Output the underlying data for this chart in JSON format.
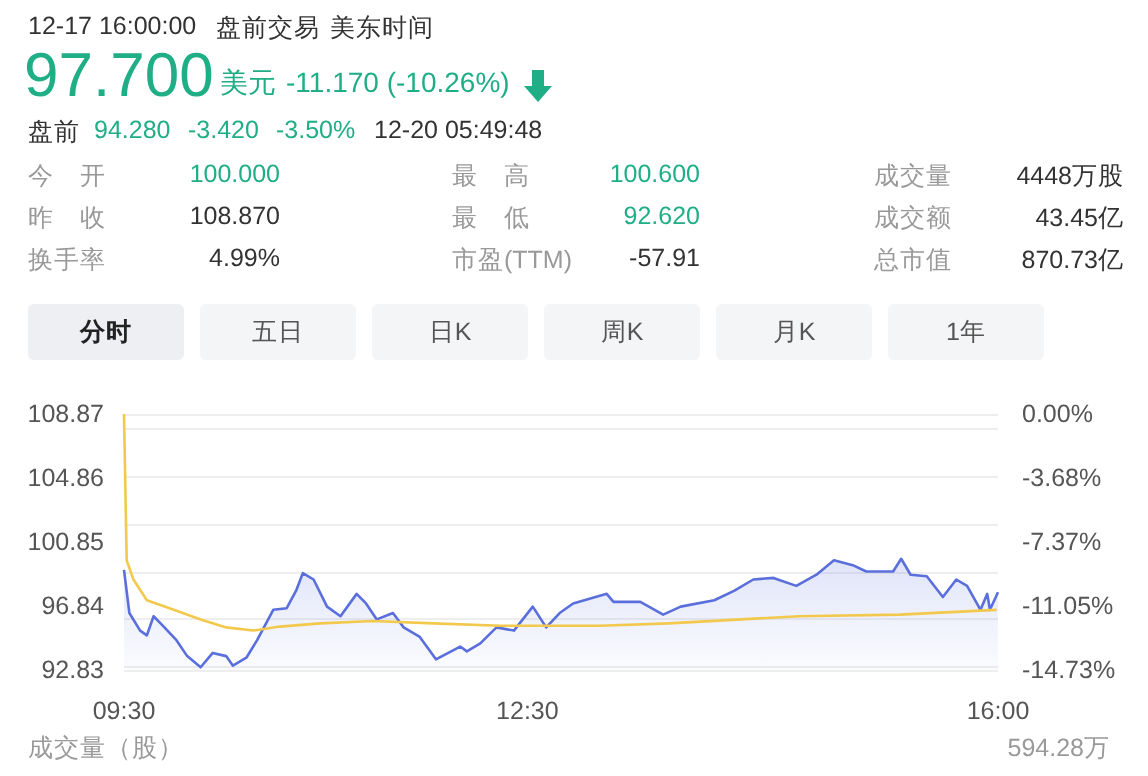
{
  "chart_data": {
    "type": "line",
    "annotations": [
      "12-17 16:00:00",
      "盘前交易",
      "美东时间",
      "97.700",
      "美元",
      "-11.170 (-10.26%)",
      "盘前",
      "94.280",
      "-3.420",
      "-3.50%",
      "12-20 05:49:48",
      "今　开",
      "100.000",
      "最　高",
      "100.600",
      "成交量",
      "4448万股",
      "昨　收",
      "108.870",
      "最　低",
      "92.620",
      "成交额",
      "43.45亿",
      "换手率",
      "4.99%",
      "市盈(TTM)",
      "-57.91",
      "总市值",
      "870.73亿",
      "分时",
      "五日",
      "日K",
      "周K",
      "月K",
      "1年",
      "成交量（股）",
      "594.28万"
    ],
    "series": [
      {
        "type": "area",
        "color": "#5a6fdc",
        "x": [
          9.5,
          9.54,
          9.62,
          9.67,
          9.72,
          9.79,
          9.89,
          9.97,
          10.07,
          10.16,
          10.26,
          10.31,
          10.41,
          10.49,
          10.61,
          10.71,
          10.78,
          10.83,
          10.91,
          11.01,
          11.11,
          11.23,
          11.3,
          11.38,
          11.5,
          11.58,
          11.7,
          11.82,
          12.0,
          12.05,
          12.15,
          12.27,
          12.4,
          12.54,
          12.64,
          12.74,
          12.84,
          13.09,
          13.14,
          13.34,
          13.51,
          13.64,
          13.89,
          14.04,
          14.18,
          14.33,
          14.5,
          14.65,
          14.78,
          14.92,
          15.02,
          15.22,
          15.28,
          15.35,
          15.47,
          15.59,
          15.69,
          15.77,
          15.87,
          15.92,
          15.94,
          16.0
        ],
        "values": [
          99.1,
          96.4,
          95.3,
          95.0,
          96.2,
          95.6,
          94.7,
          93.7,
          93.0,
          93.9,
          93.7,
          93.1,
          93.6,
          94.7,
          96.6,
          96.7,
          97.8,
          98.9,
          98.5,
          96.8,
          96.2,
          97.6,
          97.0,
          96.0,
          96.4,
          95.5,
          94.9,
          93.5,
          94.3,
          94.0,
          94.5,
          95.5,
          95.3,
          96.8,
          95.5,
          96.4,
          97.0,
          97.6,
          97.1,
          97.1,
          96.3,
          96.8,
          97.2,
          97.8,
          98.5,
          98.6,
          98.1,
          98.8,
          99.7,
          99.4,
          99.0,
          99.0,
          99.8,
          98.8,
          98.7,
          97.4,
          98.5,
          98.1,
          96.6,
          97.6,
          96.6,
          97.7
        ]
      },
      {
        "color": "#f2c94c",
        "x": [
          9.5,
          9.52,
          9.57,
          9.67,
          9.87,
          10.07,
          10.26,
          10.46,
          10.66,
          10.96,
          11.35,
          11.8,
          12.3,
          13.04,
          13.55,
          14.52,
          15.27,
          15.99
        ],
        "values": [
          108.87,
          99.7,
          98.5,
          97.2,
          96.6,
          96.0,
          95.5,
          95.3,
          95.55,
          95.75,
          95.9,
          95.75,
          95.6,
          95.6,
          95.75,
          96.2,
          96.3,
          96.6
        ]
      }
    ],
    "xlim": [
      9.5,
      16
    ],
    "xticks": [
      {
        "value": 9.5,
        "label": "09:30"
      },
      {
        "value": 12.5,
        "label": "12:30"
      },
      {
        "value": 16,
        "label": "16:00"
      }
    ],
    "ylim": [
      92.83,
      108.87
    ],
    "yticks": [
      92.83,
      96.84,
      100.85,
      104.86,
      108.87
    ],
    "y2lim": [
      -14.73,
      0
    ],
    "y2ticks": [
      {
        "value": -14.73,
        "label": "-14.73%"
      },
      {
        "value": -11.05,
        "label": "-11.05%"
      },
      {
        "value": -7.37,
        "label": "-7.37%"
      },
      {
        "value": -3.68,
        "label": "-3.68%"
      },
      {
        "value": 0,
        "label": "0.00%"
      }
    ],
    "grid": "y",
    "marker": "none"
  }
}
